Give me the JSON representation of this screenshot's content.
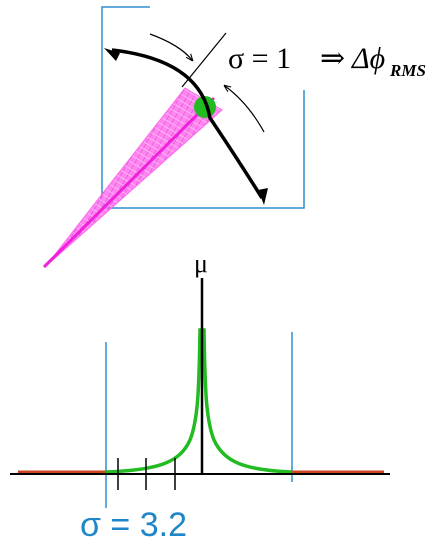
{
  "labels": {
    "sigma_symbol": "σ",
    "sigma_equals": " = 1",
    "implies": "⇒",
    "delta_phi": "Δϕ",
    "rms_subscript": "RMS",
    "mu": "μ",
    "sigma_bottom": "σ = 3.2"
  },
  "colors": {
    "box": "#2f8fd0",
    "beam_fill": "#ff66ee",
    "beam_line": "#ee22dd",
    "marker": "#22bb22",
    "curve": "#22bb22",
    "baseline_ends": "#cc4422",
    "axis": "#000000",
    "sigma_text": "#1f86c8"
  },
  "icons": {
    "rotation_arrows": "curved-double-arrow-icon",
    "phasor_marker": "circle-marker-icon"
  }
}
